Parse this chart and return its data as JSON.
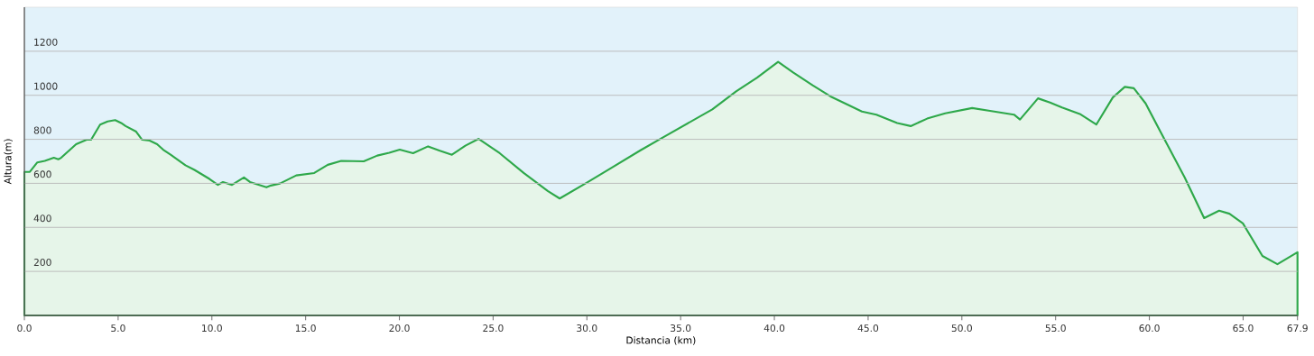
{
  "chart_data": {
    "type": "area",
    "xlabel": "Distancia (km)",
    "ylabel": "Altura(m)",
    "xlim": [
      0,
      67.9
    ],
    "ylim": [
      0,
      1400
    ],
    "xticks": [
      {
        "value": 0,
        "label": "0.0"
      },
      {
        "value": 5,
        "label": "5.0"
      },
      {
        "value": 10,
        "label": "10.0"
      },
      {
        "value": 15,
        "label": "15.0"
      },
      {
        "value": 20,
        "label": "20.0"
      },
      {
        "value": 25,
        "label": "25.0"
      },
      {
        "value": 30,
        "label": "30.0"
      },
      {
        "value": 35,
        "label": "35.0"
      },
      {
        "value": 40,
        "label": "40.0"
      },
      {
        "value": 45,
        "label": "45.0"
      },
      {
        "value": 50,
        "label": "50.0"
      },
      {
        "value": 55,
        "label": "55.0"
      },
      {
        "value": 60,
        "label": "60.0"
      },
      {
        "value": 65,
        "label": "65.0"
      },
      {
        "value": 67.9,
        "label": "67.9"
      }
    ],
    "yticks": [
      200,
      400,
      600,
      800,
      1000,
      1200
    ],
    "grid": "y",
    "x": [
      0,
      0.29,
      0.69,
      1.09,
      1.57,
      1.81,
      1.96,
      2.76,
      3.32,
      3.56,
      4.04,
      4.44,
      4.84,
      5.16,
      5.4,
      5.96,
      6.28,
      6.68,
      7.08,
      7.4,
      7.8,
      8.59,
      9.07,
      9.87,
      10.32,
      10.59,
      11.07,
      11.71,
      12.03,
      12.91,
      13.15,
      13.63,
      14.5,
      15.46,
      16.18,
      16.9,
      18.1,
      18.82,
      19.46,
      20.02,
      20.73,
      21.53,
      22.16,
      22.8,
      23.52,
      24.23,
      25.35,
      26.63,
      27.91,
      28.55,
      29.98,
      31.26,
      32.86,
      34.13,
      35.41,
      36.69,
      37.96,
      39.08,
      40.2,
      41.0,
      42.04,
      42.99,
      43.87,
      44.67,
      45.44,
      46.55,
      47.27,
      48.15,
      49.11,
      50.55,
      51.5,
      52.78,
      53.1,
      54.06,
      54.7,
      55.34,
      56.29,
      57.17,
      58.05,
      58.69,
      59.17,
      59.8,
      60.6,
      61.88,
      62.92,
      63.72,
      64.27,
      64.99,
      66.03,
      66.83,
      67.9
    ],
    "series": [
      {
        "color": "#2ea84a",
        "values": [
          652,
          652,
          695,
          702,
          716,
          709,
          716,
          778,
          798,
          798,
          867,
          881,
          887,
          874,
          860,
          835,
          798,
          794,
          778,
          753,
          730,
          682,
          661,
          620,
          593,
          606,
          593,
          627,
          606,
          582,
          590,
          599,
          636,
          647,
          684,
          702,
          700,
          726,
          739,
          753,
          737,
          768,
          748,
          730,
          771,
          802,
          737,
          647,
          565,
          531,
          602,
          668,
          750,
          812,
          874,
          936,
          1018,
          1080,
          1152,
          1104,
          1045,
          995,
          959,
          926,
          912,
          874,
          860,
          894,
          918,
          942,
          929,
          912,
          890,
          986,
          967,
          945,
          915,
          867,
          990,
          1038,
          1032,
          963,
          833,
          627,
          442,
          476,
          462,
          418,
          270,
          233,
          287
        ]
      }
    ]
  }
}
